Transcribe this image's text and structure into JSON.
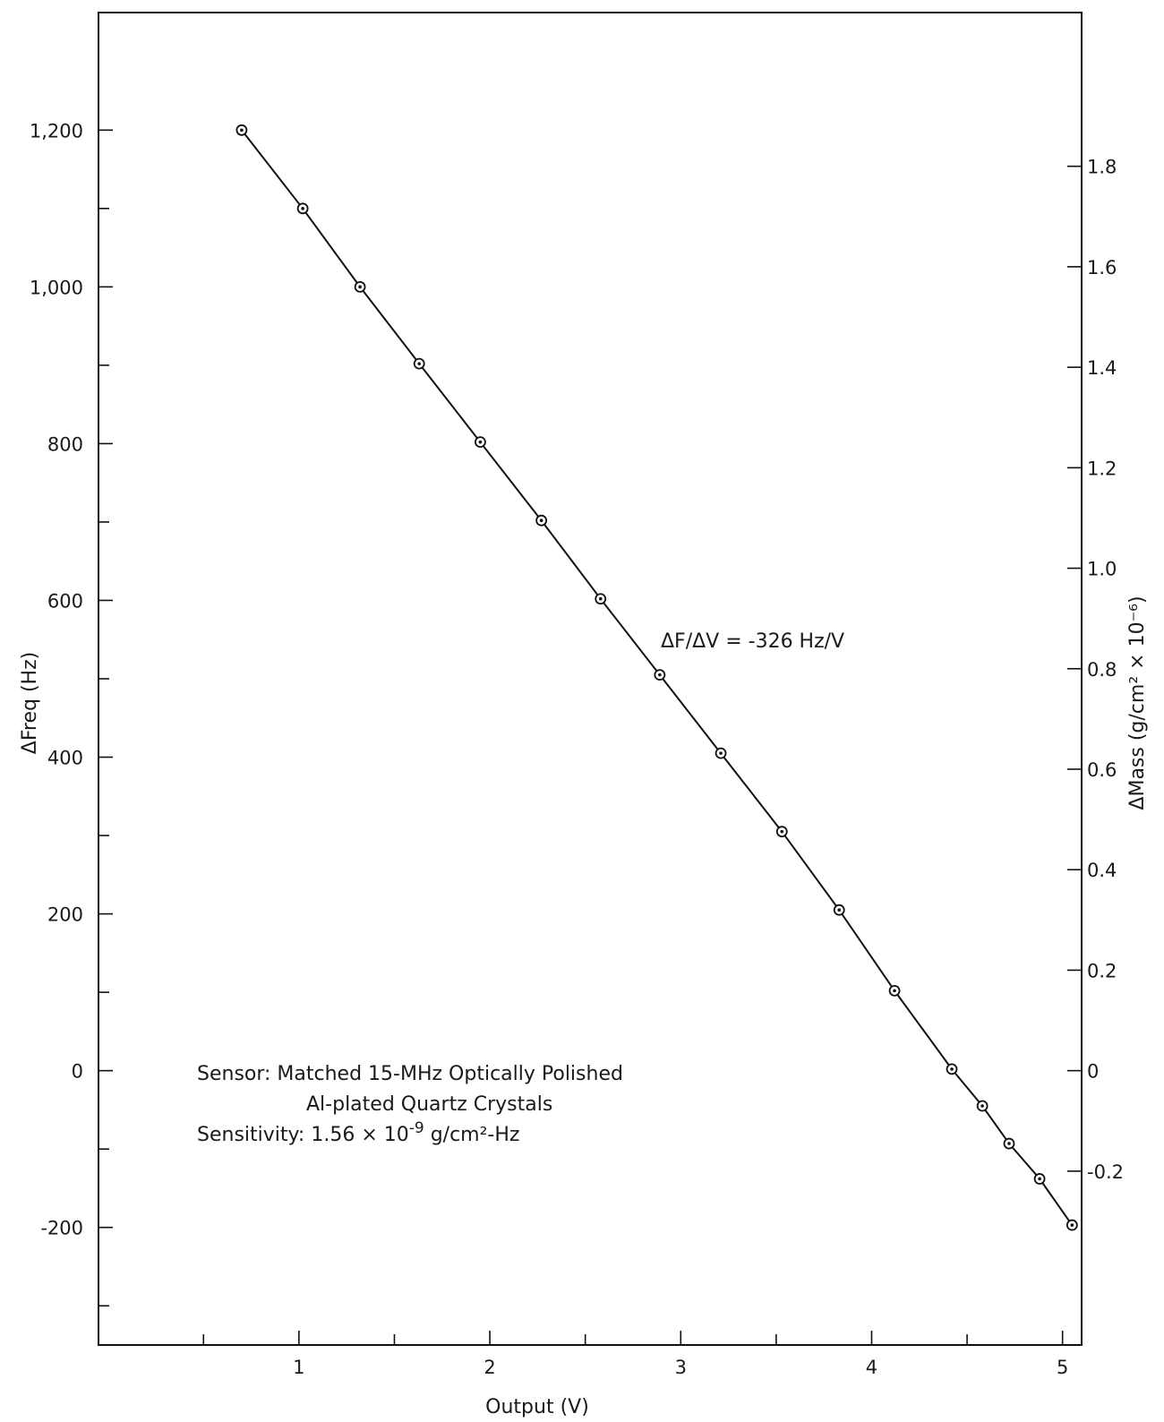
{
  "chart_data": {
    "type": "line",
    "title": "",
    "xlabel": "Output (V)",
    "ylabel": "ΔFreq (Hz)",
    "y2label": "ΔMass (g/cm² × 10⁻⁶)",
    "xlim": [
      -0.05,
      5.1
    ],
    "ylim": [
      -350,
      1350
    ],
    "y2lim": [
      -0.546,
      2.106
    ],
    "x_ticks": [
      1,
      2,
      3,
      4,
      5
    ],
    "x_minor_ticks": [
      0.5,
      1.5,
      2.5,
      3.5,
      4.5
    ],
    "x_tick_labels": [
      "1",
      "2",
      "3",
      "4",
      "5"
    ],
    "y_ticks": [
      1200,
      1000,
      800,
      600,
      400,
      200,
      0,
      -200
    ],
    "y_tick_labels": [
      "1,200",
      "1,000",
      "800",
      "600",
      "400",
      "200",
      "0",
      "-200"
    ],
    "y_minor_ticks": [
      1100,
      900,
      700,
      500,
      300,
      100,
      -100,
      -300
    ],
    "y2_ticks": [
      1.8,
      1.6,
      1.4,
      1.2,
      1.0,
      0.8,
      0.6,
      0.4,
      0.2,
      0,
      -0.2
    ],
    "y2_tick_labels": [
      "1.8",
      "1.6",
      "1.4",
      "1.2",
      "1.0",
      "0.8",
      "0.6",
      "0.4",
      "0.2",
      "0",
      "-0.2"
    ],
    "grid": false,
    "series": [
      {
        "x": [
          0.7,
          1.02,
          1.32,
          1.63,
          1.95,
          2.27,
          2.58,
          2.89,
          3.21,
          3.53,
          3.83,
          4.12,
          4.42,
          4.58,
          4.72,
          4.88,
          5.05
        ],
        "y": [
          1200,
          1100,
          1000,
          902,
          802,
          702,
          602,
          505,
          405,
          305,
          205,
          102,
          2,
          -45,
          -93,
          -138,
          -197
        ]
      }
    ],
    "annotations": {
      "slope": "ΔF/ΔV = -326 Hz/V",
      "sensor_line1": "Sensor: Matched 15-MHz Optically Polished",
      "sensor_line2": "Al-plated Quartz Crystals",
      "sensitivity_prefix": "Sensitivity: 1.56 × 10",
      "sensitivity_exp": "-9",
      "sensitivity_suffix": " g/cm²-Hz"
    }
  }
}
